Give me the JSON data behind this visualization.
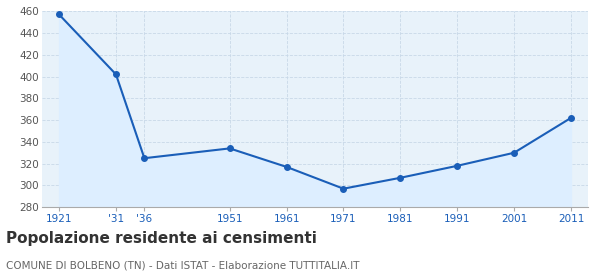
{
  "years": [
    1921,
    1931,
    1936,
    1951,
    1961,
    1971,
    1981,
    1991,
    2001,
    2011
  ],
  "x_labels": [
    "1921",
    "'31",
    "'36",
    "1951",
    "1961",
    "1971",
    "1981",
    "1991",
    "2001",
    "2011"
  ],
  "values": [
    457,
    402,
    325,
    334,
    317,
    297,
    307,
    318,
    330,
    362
  ],
  "line_color": "#1a5eb8",
  "fill_color": "#ddeeff",
  "marker": "o",
  "marker_size": 4,
  "ylim": [
    280,
    460
  ],
  "yticks": [
    280,
    300,
    320,
    340,
    360,
    380,
    400,
    420,
    440,
    460
  ],
  "grid_color": "#c8d8e8",
  "bg_color": "#e8f2fa",
  "title": "Popolazione residente ai censimenti",
  "subtitle": "COMUNE DI BOLBENO (TN) - Dati ISTAT - Elaborazione TUTTITALIA.IT",
  "title_fontsize": 11,
  "subtitle_fontsize": 7.5,
  "title_color": "#333333",
  "subtitle_color": "#666666",
  "tick_color": "#1a5eb8",
  "tick_fontsize": 7.5,
  "ytick_color": "#555555"
}
